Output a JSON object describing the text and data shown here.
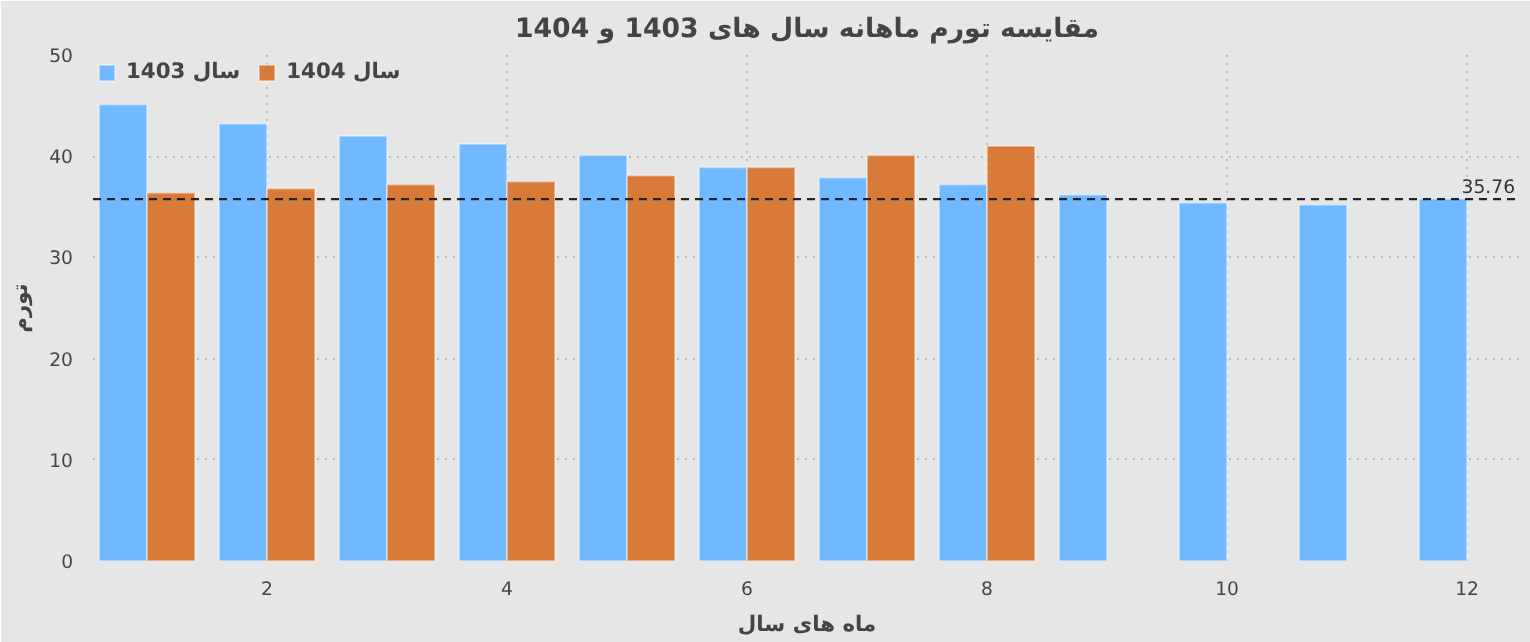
{
  "chart_data": {
    "type": "bar",
    "title": "مقایسه تورم ماهانه سال های 1403 و 1404",
    "xlabel": "ماه های سال",
    "ylabel": "تورم",
    "x": [
      1,
      2,
      3,
      4,
      5,
      6,
      7,
      8,
      9,
      10,
      11,
      12
    ],
    "series": [
      {
        "name": "سال 1403",
        "color": "#70b8ff",
        "values": [
          45.1,
          43.2,
          42.0,
          41.2,
          40.1,
          38.9,
          37.9,
          37.2,
          36.2,
          35.4,
          35.2,
          35.8
        ]
      },
      {
        "name": "سال 1404",
        "color": "#d97b38",
        "values": [
          36.4,
          36.8,
          37.2,
          37.5,
          38.1,
          38.9,
          40.1,
          41.0,
          null,
          null,
          null,
          null
        ]
      }
    ],
    "xlim": [
      0.55,
      12.45
    ],
    "xticks": [
      2,
      4,
      6,
      8,
      10,
      12
    ],
    "ylim": [
      0,
      50
    ],
    "yticks": [
      0,
      10,
      20,
      30,
      40,
      50
    ],
    "ref_lines": [
      {
        "axis": "y",
        "value": 35.76,
        "label": "35.76",
        "color": "#222222",
        "line_style": "dashed"
      }
    ],
    "grid": true,
    "legend": "top left"
  }
}
